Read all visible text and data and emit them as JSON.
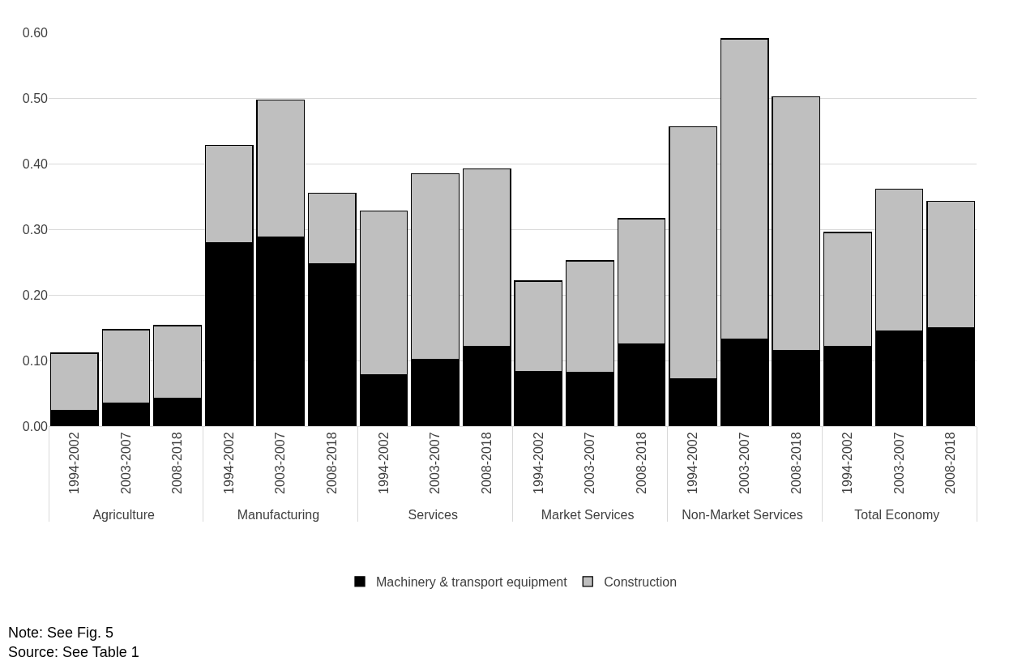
{
  "chart_data": {
    "type": "bar",
    "stacked": true,
    "categories": [
      "1994-2002",
      "2003-2007",
      "2008-2018",
      "1994-2002",
      "2003-2007",
      "2008-2018",
      "1994-2002",
      "2003-2007",
      "2008-2018",
      "1994-2002",
      "2003-2007",
      "2008-2018",
      "1994-2002",
      "2003-2007",
      "2008-2018",
      "1994-2002",
      "2003-2007",
      "2008-2018"
    ],
    "series": [
      {
        "name": "Machinery & transport equipment",
        "color": "#000000",
        "values": [
          0.024,
          0.035,
          0.043,
          0.28,
          0.288,
          0.247,
          0.078,
          0.102,
          0.121,
          0.083,
          0.082,
          0.125,
          0.072,
          0.133,
          0.115,
          0.121,
          0.145,
          0.15
        ]
      },
      {
        "name": "Construction",
        "color": "#bfbfbf",
        "values": [
          0.087,
          0.112,
          0.11,
          0.148,
          0.209,
          0.108,
          0.25,
          0.283,
          0.271,
          0.138,
          0.17,
          0.191,
          0.384,
          0.457,
          0.387,
          0.174,
          0.216,
          0.193
        ]
      }
    ],
    "ylim": [
      0,
      0.6
    ],
    "yticks": [
      {
        "value": 0,
        "label": "0.00"
      },
      {
        "value": 0.1,
        "label": "0.10"
      },
      {
        "value": 0.2,
        "label": "0.20"
      },
      {
        "value": 0.3,
        "label": "0.30"
      },
      {
        "value": 0.4,
        "label": "0.40"
      },
      {
        "value": 0.5,
        "label": "0.50"
      },
      {
        "value": 0.6,
        "label": "0.60"
      }
    ],
    "grid": "y",
    "legend": "bottom",
    "annotations": [
      "Agriculture",
      "Manufacturing",
      "Services",
      "Market Services",
      "Non-Market Services",
      "Total Economy",
      "Note: See Fig. 5",
      "Source: See Table 1"
    ]
  }
}
